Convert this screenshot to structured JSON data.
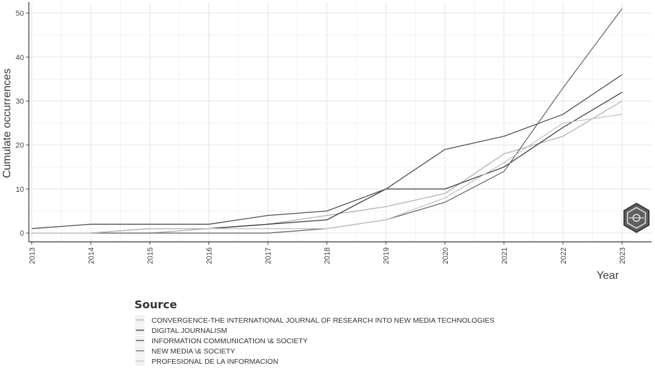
{
  "chart_data": {
    "type": "line",
    "xlabel": "Year",
    "ylabel": "Cumulate occurrences",
    "x": [
      2013,
      2014,
      2015,
      2016,
      2017,
      2018,
      2019,
      2020,
      2021,
      2022,
      2023
    ],
    "xlim": [
      2012.95,
      2023.5
    ],
    "ylim": [
      -2,
      52.5
    ],
    "yticks": [
      0,
      10,
      20,
      30,
      40,
      50
    ],
    "grid": true,
    "legend": {
      "title": "Source",
      "position": "bottom"
    },
    "series": [
      {
        "name": "CONVERGENCE-THE INTERNATIONAL JOURNAL OF RESEARCH INTO NEW MEDIA TECHNOLOGIES",
        "color": "#b0b0b0",
        "values": [
          0,
          0,
          0,
          1,
          2,
          4,
          6,
          9,
          18,
          22,
          30
        ]
      },
      {
        "name": "DIGITAL JOURNALISM",
        "color": "#3a3a3a",
        "values": [
          0,
          0,
          1,
          1,
          2,
          3,
          10,
          10,
          15,
          24,
          32
        ]
      },
      {
        "name": "INFORMATION COMMUNICATION \\& SOCIETY",
        "color": "#4e4e4e",
        "values": [
          1,
          2,
          2,
          2,
          4,
          5,
          10,
          19,
          22,
          27,
          36
        ]
      },
      {
        "name": "NEW MEDIA \\& SOCIETY",
        "color": "#6a6a6a",
        "values": [
          0,
          0,
          0,
          0,
          0,
          1,
          3,
          7,
          14,
          33,
          51
        ]
      },
      {
        "name": "PROFESIONAL DE LA INFORMACION",
        "color": "#c4c4c4",
        "values": [
          0,
          0,
          1,
          1,
          1,
          1,
          3,
          8,
          16,
          25,
          27
        ]
      }
    ]
  }
}
